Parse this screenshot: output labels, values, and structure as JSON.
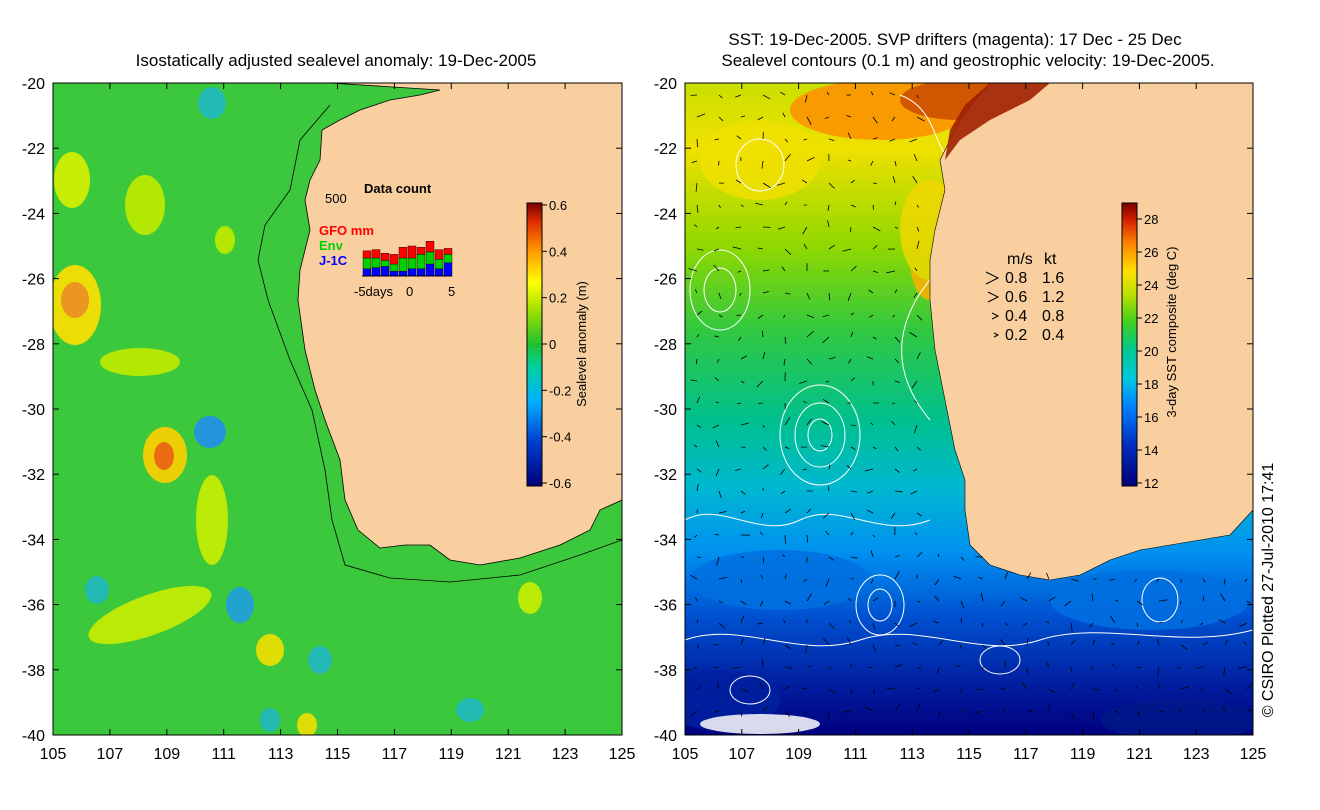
{
  "left_panel": {
    "title": "Isostatically adjusted sealevel anomaly: 19-Dec-2005",
    "y_ticks": [
      "-20",
      "-22",
      "-24",
      "-26",
      "-28",
      "-30",
      "-32",
      "-34",
      "-36",
      "-38",
      "-40"
    ],
    "x_ticks": [
      "105",
      "107",
      "109",
      "111",
      "113",
      "115",
      "117",
      "119",
      "121",
      "123",
      "125"
    ],
    "colorbar": {
      "label": "Sealevel anomaly (m)",
      "ticks": [
        "0.6",
        "0.4",
        "0.2",
        "0",
        "-0.2",
        "-0.4",
        "-0.6"
      ]
    },
    "inset": {
      "title": "Data count",
      "y_max": "500",
      "legend": [
        {
          "label": "GFO mm",
          "color": "#ff0000"
        },
        {
          "label": "Env",
          "color": "#00d000"
        },
        {
          "label": "J-1C",
          "color": "#0000ff"
        }
      ],
      "x_label_left": "-5days",
      "x_label_mid": "0",
      "x_label_right": "5",
      "days": [
        -5,
        -4,
        -3,
        -2,
        -1,
        0,
        1,
        2,
        3,
        4
      ],
      "counts": [
        {
          "gfo": 60,
          "env": 90,
          "j1c": 60
        },
        {
          "gfo": 70,
          "env": 80,
          "j1c": 70
        },
        {
          "gfo": 60,
          "env": 50,
          "j1c": 80
        },
        {
          "gfo": 80,
          "env": 60,
          "j1c": 40
        },
        {
          "gfo": 90,
          "env": 110,
          "j1c": 40
        },
        {
          "gfo": 100,
          "env": 90,
          "j1c": 60
        },
        {
          "gfo": 60,
          "env": 120,
          "j1c": 60
        },
        {
          "gfo": 90,
          "env": 100,
          "j1c": 100
        },
        {
          "gfo": 80,
          "env": 80,
          "j1c": 60
        },
        {
          "gfo": 50,
          "env": 70,
          "j1c": 110
        }
      ]
    }
  },
  "right_panel": {
    "title_line1": "SST: 19-Dec-2005. SVP drifters (magenta): 17 Dec - 25 Dec",
    "title_line2": "Sealevel contours (0.1 m) and geostrophic velocity: 19-Dec-2005.",
    "y_ticks": [
      "-20",
      "-22",
      "-24",
      "-26",
      "-28",
      "-30",
      "-32",
      "-34",
      "-36",
      "-38",
      "-40"
    ],
    "x_ticks": [
      "105",
      "107",
      "109",
      "111",
      "113",
      "115",
      "117",
      "119",
      "121",
      "123",
      "125"
    ],
    "colorbar": {
      "label": "3-day SST composite (deg C)",
      "ticks": [
        "28",
        "26",
        "24",
        "22",
        "20",
        "18",
        "16",
        "14",
        "12"
      ]
    },
    "velocity_legend": {
      "header_ms": "m/s",
      "header_kt": "kt",
      "rows": [
        {
          "ms": "0.8",
          "kt": "1.6"
        },
        {
          "ms": "0.6",
          "kt": "1.2"
        },
        {
          "ms": "0.4",
          "kt": "0.8"
        },
        {
          "ms": "0.2",
          "kt": "0.4"
        }
      ]
    }
  },
  "credit": "© CSIRO Plotted 27-Jul-2010 17:41",
  "colors": {
    "land": "#f9cfa0",
    "ocean_sla": "#3cc83c",
    "axis": "#000000"
  }
}
